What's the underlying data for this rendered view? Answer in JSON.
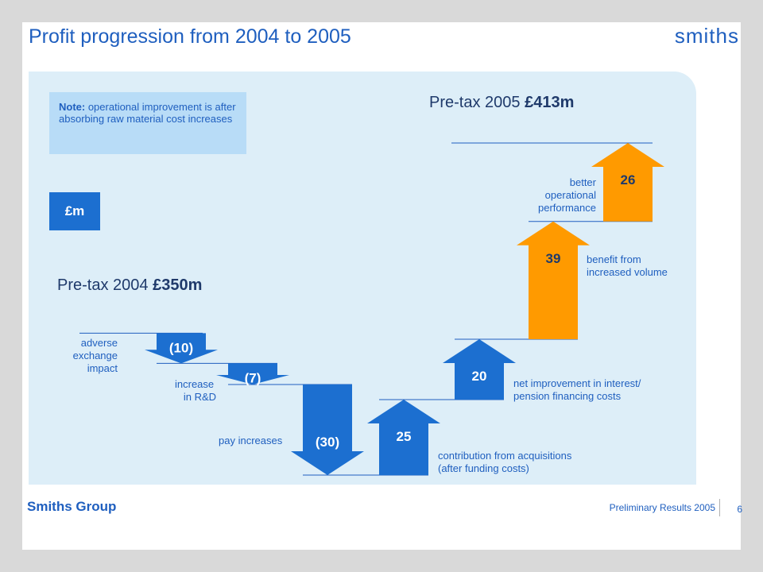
{
  "slide": {
    "title": "Profit progression from 2004 to 2005",
    "logo": "smiths",
    "note_bold": "Note:",
    "note_text": " operational improvement is after absorbing raw material cost increases",
    "unit": "£m",
    "pretax_2004_label": "Pre-tax 2004 ",
    "pretax_2004_value": "£350m",
    "pretax_2005_label": "Pre-tax 2005 ",
    "pretax_2005_value": "£413m",
    "footer_left": "Smiths Group",
    "footer_right": "Preliminary Results 2005",
    "page_number": "6"
  },
  "colors": {
    "decrease": "#1c6fd0",
    "increase_blue": "#1c6fd0",
    "increase_orange": "#ff9a00",
    "text": "#1f5fbf"
  },
  "chart_data": {
    "type": "bar",
    "subtype": "waterfall",
    "unit": "£m",
    "start": {
      "label": "Pre-tax 2004",
      "value": 350
    },
    "end": {
      "label": "Pre-tax 2005",
      "value": 413
    },
    "steps": [
      {
        "label": "adverse exchange impact",
        "value": -10,
        "display": "(10)",
        "color": "blue"
      },
      {
        "label": "increase in R&D",
        "value": -7,
        "display": "(7)",
        "color": "blue"
      },
      {
        "label": "pay increases",
        "value": -30,
        "display": "(30)",
        "color": "blue"
      },
      {
        "label": "contribution from acquisitions (after funding costs)",
        "value": 25,
        "display": "25",
        "color": "blue"
      },
      {
        "label": "net improvement in interest/ pension financing costs",
        "value": 20,
        "display": "20",
        "color": "blue"
      },
      {
        "label": "benefit from increased volume",
        "value": 39,
        "display": "39",
        "color": "orange"
      },
      {
        "label": "better operational performance",
        "value": 26,
        "display": "26",
        "color": "orange"
      }
    ],
    "step_descriptions": {
      "s0": "adverse\nexchange\nimpact",
      "s1": "increase\n   in R&D",
      "s2": "pay increases",
      "s3": "contribution from acquisitions\n(after funding costs)",
      "s4": "net improvement in interest/\npension financing costs",
      "s5": "benefit from\nincreased volume",
      "s6": "better\noperational\nperformance"
    }
  }
}
